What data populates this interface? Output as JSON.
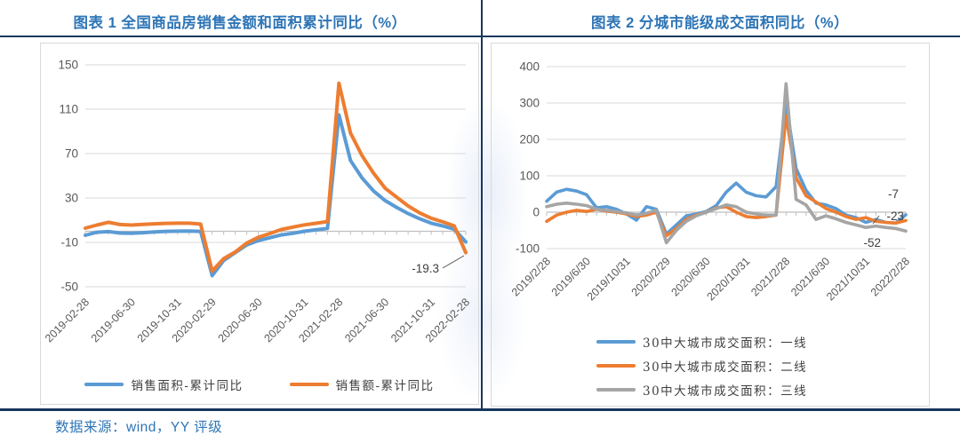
{
  "page": {
    "source_note": "数据来源：wind，YY 评级"
  },
  "colors": {
    "title_blue": "#2E75B6",
    "rule_navy": "#17375E",
    "axis_text": "#595959",
    "grid": "#D9D9D9",
    "axis_line": "#BFBFBF",
    "series_blue": "#5B9BD5",
    "series_orange": "#ED7D31",
    "series_gray": "#A5A5A5",
    "annotation_text": "#404040",
    "chart_border": "#D9D9D9",
    "source_text": "#2E75B6",
    "watermark": "#8FAADC"
  },
  "left_panel": {
    "title": "图表 1 全国商品房销售金额和面积累计同比（%）"
  },
  "right_panel": {
    "title": "图表 2 分城市能级成交面积同比（%）"
  },
  "chart_data": [
    {
      "id": "national-commodity-housing-sales-cumulative-yoy",
      "type": "line",
      "title": "图表 1 全国商品房销售金额和面积累计同比（%）",
      "ylim": [
        -50,
        150
      ],
      "yticks": [
        150,
        110,
        70,
        30,
        -10,
        -50
      ],
      "grid": true,
      "x_frequency": "monthly",
      "n_points": 34,
      "x_tick_labels": [
        "2019-02-28",
        "2019-06-30",
        "2019-10-31",
        "2020-02-29",
        "2020-06-30",
        "2020-10-31",
        "2021-02-28",
        "2021-06-30",
        "2021-10-31",
        "2022-02-28"
      ],
      "x_tick_indices": [
        0,
        4,
        8,
        11,
        15,
        19,
        22,
        26,
        30,
        33
      ],
      "legend_position": "bottom-horizontal",
      "series": [
        {
          "name": "销售面积-累计同比",
          "color_key": "series_blue",
          "values": [
            -3.6,
            -0.9,
            -0.3,
            -1.6,
            -1.8,
            -1.3,
            -0.6,
            -0.1,
            0.1,
            0.2,
            -0.1,
            -39.9,
            -26.3,
            -19.3,
            -12.3,
            -8.4,
            -5.8,
            -3.3,
            -1.8,
            0,
            1.3,
            2.6,
            104.9,
            63.8,
            48.1,
            36.3,
            27.7,
            21.5,
            15.9,
            11.3,
            7.3,
            4.8,
            1.9,
            -9.6
          ]
        },
        {
          "name": "销售额-累计同比",
          "color_key": "series_orange",
          "values": [
            2.8,
            5.6,
            8.1,
            6.1,
            5.6,
            6.2,
            6.7,
            7.1,
            7.3,
            7.3,
            6.5,
            -35.9,
            -24.7,
            -18.6,
            -10.6,
            -5.4,
            -2.1,
            1.6,
            3.8,
            5.8,
            7.2,
            8.7,
            133.4,
            88.5,
            68.2,
            52.4,
            38.9,
            30.7,
            22.8,
            16.6,
            11.8,
            8.5,
            4.8,
            -19.3
          ]
        }
      ],
      "annotations": [
        {
          "text": "-19.3",
          "series": "销售额-累计同比",
          "point_index": 33,
          "value": -19.3
        }
      ]
    },
    {
      "id": "30-city-transaction-area-yoy-by-tier",
      "type": "line",
      "title": "图表 2 分城市能级成交面积同比（%）",
      "ylim": [
        -100,
        400
      ],
      "yticks": [
        400,
        300,
        200,
        100,
        0,
        -100
      ],
      "grid": true,
      "x_frequency": "monthly",
      "n_points": 37,
      "x_tick_labels": [
        "2019/2/28",
        "2019/6/30",
        "2019/10/31",
        "2020/2/29",
        "2020/6/30",
        "2020/10/31",
        "2021/2/28",
        "2021/6/30",
        "2021/10/31",
        "2022/2/28"
      ],
      "x_tick_indices": [
        0,
        4,
        8,
        12,
        16,
        20,
        24,
        28,
        32,
        36
      ],
      "legend_position": "bottom-vertical",
      "series": [
        {
          "name": "30中大城市成交面积：一线",
          "color_key": "series_blue",
          "values": [
            30,
            55,
            63,
            58,
            48,
            12,
            15,
            8,
            -5,
            -22,
            15,
            8,
            -60,
            -35,
            -10,
            -5,
            2,
            18,
            55,
            80,
            55,
            45,
            42,
            70,
            300,
            120,
            60,
            25,
            20,
            10,
            -8,
            -15,
            -28,
            -20,
            -28,
            -30,
            -7
          ]
        },
        {
          "name": "30中大城市成交面积：二线",
          "color_key": "series_orange",
          "values": [
            -25,
            -8,
            0,
            5,
            2,
            8,
            3,
            0,
            -5,
            -12,
            -8,
            0,
            -65,
            -45,
            -20,
            -8,
            0,
            12,
            15,
            0,
            -12,
            -15,
            -12,
            -8,
            265,
            95,
            45,
            28,
            10,
            0,
            -12,
            -20,
            -15,
            -25,
            -28,
            -30,
            -23
          ]
        },
        {
          "name": "30中大城市成交面积：三线",
          "color_key": "series_gray",
          "values": [
            15,
            22,
            25,
            22,
            18,
            8,
            5,
            2,
            -2,
            -8,
            -3,
            5,
            -84,
            -50,
            -25,
            -10,
            0,
            10,
            20,
            15,
            0,
            -5,
            -8,
            -8,
            353,
            35,
            20,
            -20,
            -10,
            -18,
            -28,
            -35,
            -42,
            -38,
            -42,
            -45,
            -52
          ]
        }
      ],
      "annotations": [
        {
          "text": "-7",
          "series": "30中大城市成交面积：一线",
          "point_index": 36,
          "value": -7
        },
        {
          "text": "-23",
          "series": "30中大城市成交面积：二线",
          "point_index": 36,
          "value": -23
        },
        {
          "text": "-52",
          "series": "30中大城市成交面积：三线",
          "point_index": 36,
          "value": -52
        }
      ]
    }
  ]
}
